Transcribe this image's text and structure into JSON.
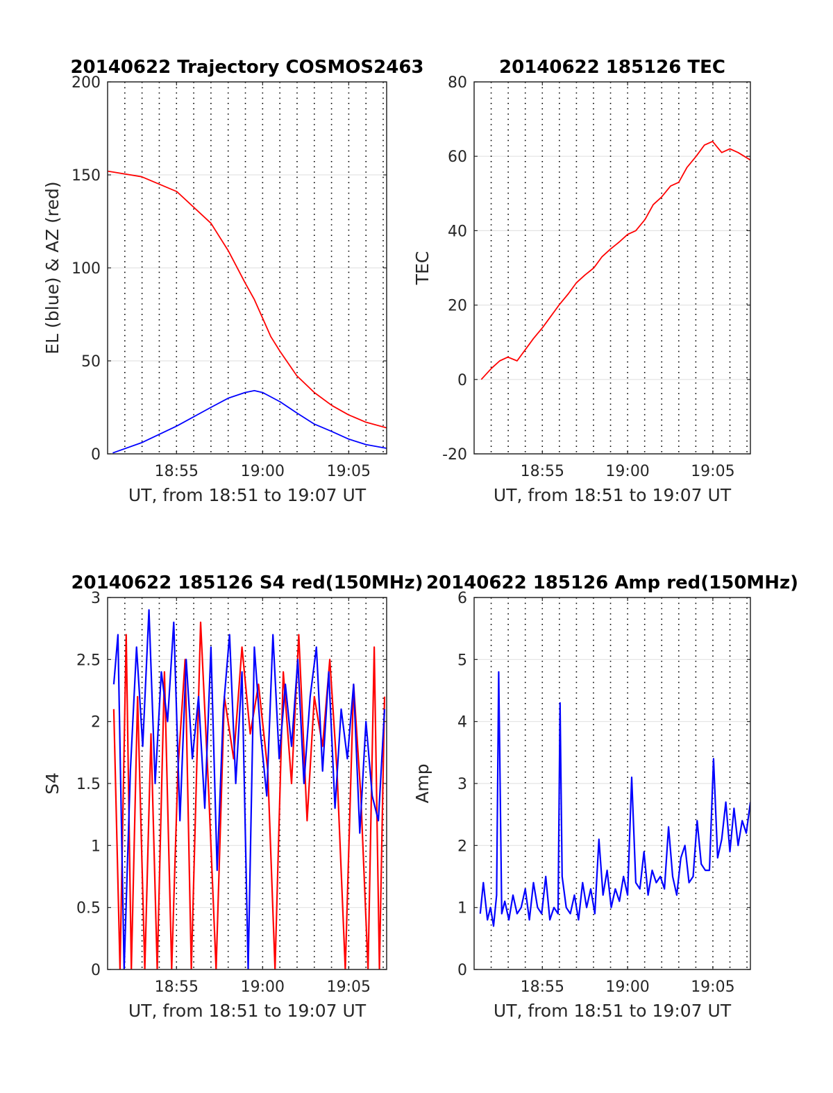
{
  "chart_data": [
    {
      "type": "line",
      "title": "20140622 Trajectory COSMOS2463",
      "xlabel": "UT, from 18:51 to 19:07 UT",
      "ylabel": "EL (blue) & AZ (red)",
      "xlim": [
        18.85,
        19.12
      ],
      "ylim": [
        0,
        200
      ],
      "xticks": [
        {
          "value": 18.9167,
          "label": "18:55"
        },
        {
          "value": 19.0,
          "label": "19:00"
        },
        {
          "value": 19.0833,
          "label": "19:05"
        }
      ],
      "yticks": [
        {
          "value": 0,
          "label": "0"
        },
        {
          "value": 50,
          "label": "50"
        },
        {
          "value": 100,
          "label": "100"
        },
        {
          "value": 150,
          "label": "150"
        },
        {
          "value": 200,
          "label": "200"
        }
      ],
      "grid": true,
      "series": [
        {
          "color": "#ff0000",
          "x": [
            18.85,
            18.883,
            18.917,
            18.95,
            18.967,
            18.983,
            18.992,
            19.0,
            19.008,
            19.017,
            19.033,
            19.05,
            19.067,
            19.083,
            19.1,
            19.12
          ],
          "y": [
            152,
            149,
            141,
            124,
            109,
            92,
            83,
            73,
            63,
            55,
            42,
            33,
            26,
            21,
            17,
            14
          ]
        },
        {
          "color": "#0000ff",
          "x": [
            18.855,
            18.883,
            18.917,
            18.95,
            18.967,
            18.983,
            18.992,
            19.0,
            19.017,
            19.033,
            19.05,
            19.067,
            19.083,
            19.1,
            19.12
          ],
          "y": [
            0.5,
            6,
            15,
            25,
            30,
            33,
            34,
            33,
            28,
            22,
            16,
            12,
            8,
            5,
            3
          ]
        }
      ]
    },
    {
      "type": "line",
      "title": "20140622 185126 TEC",
      "xlabel": "UT, from 18:51 to 19:07 UT",
      "ylabel": "TEC",
      "xlim": [
        18.85,
        19.12
      ],
      "ylim": [
        -20,
        80
      ],
      "xticks": [
        {
          "value": 18.9167,
          "label": "18:55"
        },
        {
          "value": 19.0,
          "label": "19:00"
        },
        {
          "value": 19.0833,
          "label": "19:05"
        }
      ],
      "yticks": [
        {
          "value": -20,
          "label": "-20"
        },
        {
          "value": 0,
          "label": "0"
        },
        {
          "value": 20,
          "label": "20"
        },
        {
          "value": 40,
          "label": "40"
        },
        {
          "value": 60,
          "label": "60"
        },
        {
          "value": 80,
          "label": "80"
        }
      ],
      "grid": true,
      "series": [
        {
          "color": "#ff0000",
          "x": [
            18.857,
            18.867,
            18.875,
            18.883,
            18.892,
            18.9,
            18.908,
            18.917,
            18.925,
            18.933,
            18.942,
            18.95,
            18.958,
            18.967,
            18.975,
            18.983,
            18.992,
            19.0,
            19.008,
            19.017,
            19.025,
            19.033,
            19.042,
            19.05,
            19.058,
            19.067,
            19.075,
            19.083,
            19.092,
            19.1,
            19.108,
            19.12
          ],
          "y": [
            0,
            3,
            5,
            6,
            5,
            8,
            11,
            14,
            17,
            20,
            23,
            26,
            28,
            30,
            33,
            35,
            37,
            39,
            40,
            43,
            47,
            49,
            52,
            53,
            57,
            60,
            63,
            64,
            61,
            62,
            61,
            59
          ]
        }
      ]
    },
    {
      "type": "line",
      "title": "20140622 185126 S4 red(150MHz)",
      "xlabel": "UT, from 18:51 to 19:07 UT",
      "ylabel": "S4",
      "xlim": [
        18.85,
        19.12
      ],
      "ylim": [
        0,
        3
      ],
      "xticks": [
        {
          "value": 18.9167,
          "label": "18:55"
        },
        {
          "value": 19.0,
          "label": "19:00"
        },
        {
          "value": 19.0833,
          "label": "19:05"
        }
      ],
      "yticks": [
        {
          "value": 0,
          "label": "0"
        },
        {
          "value": 0.5,
          "label": "0.5"
        },
        {
          "value": 1,
          "label": "1"
        },
        {
          "value": 1.5,
          "label": "1.5"
        },
        {
          "value": 2,
          "label": "2"
        },
        {
          "value": 2.5,
          "label": "2.5"
        },
        {
          "value": 3,
          "label": "3"
        }
      ],
      "grid": true,
      "series": [
        {
          "color": "#ff0000",
          "x": [
            18.856,
            18.862,
            18.868,
            18.873,
            18.879,
            18.886,
            18.892,
            18.898,
            18.905,
            18.912,
            18.918,
            18.925,
            18.931,
            18.94,
            18.948,
            18.955,
            18.963,
            18.972,
            18.98,
            18.988,
            18.996,
            19.005,
            19.012,
            19.02,
            19.028,
            19.035,
            19.043,
            19.05,
            19.058,
            19.065,
            19.072,
            19.08,
            19.088,
            19.095,
            19.102,
            19.108,
            19.113,
            19.118
          ],
          "y": [
            2.1,
            0,
            2.7,
            0,
            2.2,
            0,
            1.9,
            0,
            2.4,
            0,
            1.6,
            2.5,
            0,
            2.8,
            1.4,
            0,
            2.2,
            1.7,
            2.6,
            1.9,
            2.3,
            1.6,
            0,
            2.4,
            1.5,
            2.7,
            1.2,
            2.2,
            1.8,
            2.5,
            1.6,
            0,
            2.3,
            1.4,
            0,
            2.6,
            0,
            2.2
          ]
        },
        {
          "color": "#0000ff",
          "x": [
            18.856,
            18.86,
            18.866,
            18.872,
            18.878,
            18.884,
            18.89,
            18.896,
            18.902,
            18.908,
            18.914,
            18.92,
            18.926,
            18.932,
            18.938,
            18.944,
            18.95,
            18.956,
            18.962,
            18.968,
            18.974,
            18.98,
            18.986,
            18.992,
            18.998,
            19.004,
            19.01,
            19.016,
            19.022,
            19.028,
            19.034,
            19.04,
            19.046,
            19.052,
            19.058,
            19.064,
            19.07,
            19.076,
            19.082,
            19.088,
            19.094,
            19.1,
            19.106,
            19.112,
            19.118
          ],
          "y": [
            2.3,
            2.7,
            0,
            1.6,
            2.6,
            1.8,
            2.9,
            1.5,
            2.4,
            2.0,
            2.8,
            1.2,
            2.5,
            1.7,
            2.2,
            1.3,
            2.6,
            0.8,
            2.1,
            2.7,
            1.5,
            2.4,
            0,
            2.6,
            1.9,
            1.4,
            2.7,
            1.7,
            2.3,
            1.8,
            2.5,
            1.5,
            2.2,
            2.6,
            1.6,
            2.4,
            1.3,
            2.1,
            1.7,
            2.3,
            1.1,
            2.0,
            1.4,
            1.2,
            2.1
          ]
        }
      ]
    },
    {
      "type": "line",
      "title": "20140622 185126 Amp red(150MHz)",
      "xlabel": "UT, from 18:51 to 19:07 UT",
      "ylabel": "Amp",
      "xlim": [
        18.85,
        19.12
      ],
      "ylim": [
        0,
        6
      ],
      "xticks": [
        {
          "value": 18.9167,
          "label": "18:55"
        },
        {
          "value": 19.0,
          "label": "19:00"
        },
        {
          "value": 19.0833,
          "label": "19:05"
        }
      ],
      "yticks": [
        {
          "value": 0,
          "label": "0"
        },
        {
          "value": 1,
          "label": "1"
        },
        {
          "value": 2,
          "label": "2"
        },
        {
          "value": 3,
          "label": "3"
        },
        {
          "value": 4,
          "label": "4"
        },
        {
          "value": 5,
          "label": "5"
        },
        {
          "value": 6,
          "label": "6"
        }
      ],
      "grid": true,
      "series": [
        {
          "color": "#0000ff",
          "x": [
            18.856,
            18.859,
            18.863,
            18.866,
            18.869,
            18.872,
            18.874,
            18.877,
            18.88,
            18.884,
            18.888,
            18.892,
            18.896,
            18.9,
            18.904,
            18.908,
            18.912,
            18.916,
            18.92,
            18.924,
            18.928,
            18.932,
            18.934,
            18.936,
            18.94,
            18.944,
            18.948,
            18.952,
            18.956,
            18.96,
            18.964,
            18.968,
            18.972,
            18.976,
            18.98,
            18.984,
            18.988,
            18.992,
            18.996,
            19.0,
            19.004,
            19.008,
            19.012,
            19.016,
            19.02,
            19.024,
            19.028,
            19.032,
            19.036,
            19.04,
            19.044,
            19.048,
            19.052,
            19.056,
            19.06,
            19.064,
            19.068,
            19.072,
            19.076,
            19.08,
            19.084,
            19.088,
            19.092,
            19.096,
            19.1,
            19.104,
            19.108,
            19.112,
            19.116,
            19.12
          ],
          "y": [
            0.9,
            1.4,
            0.8,
            1.0,
            0.7,
            1.2,
            4.8,
            0.9,
            1.1,
            0.8,
            1.2,
            0.9,
            1.0,
            1.3,
            0.8,
            1.4,
            1.0,
            0.9,
            1.5,
            0.8,
            1.0,
            0.9,
            4.3,
            1.5,
            1.0,
            0.9,
            1.2,
            0.8,
            1.4,
            1.0,
            1.3,
            0.9,
            2.1,
            1.2,
            1.6,
            1.0,
            1.3,
            1.1,
            1.5,
            1.2,
            3.1,
            1.4,
            1.3,
            1.9,
            1.2,
            1.6,
            1.4,
            1.5,
            1.3,
            2.3,
            1.5,
            1.2,
            1.8,
            2.0,
            1.4,
            1.5,
            2.4,
            1.7,
            1.6,
            1.6,
            3.4,
            1.8,
            2.1,
            2.7,
            1.9,
            2.6,
            2.0,
            2.4,
            2.2,
            2.7
          ]
        }
      ]
    }
  ]
}
